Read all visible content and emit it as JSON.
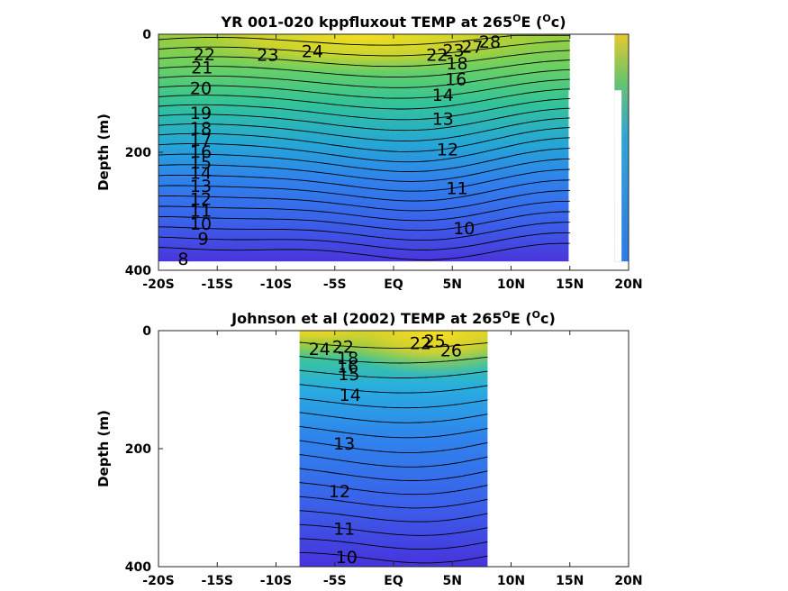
{
  "colors": {
    "cold": "#4a30e0",
    "mid": "#2f96e6",
    "teal": "#32c8a2",
    "green": "#8ccb3e",
    "warm": "#f7dc1c"
  },
  "chart_data": [
    {
      "type": "heatmap",
      "subtype": "contour",
      "title_main": "YR 001-020 kppfluxout TEMP at 265",
      "title_deg": "O",
      "title_E": "E (",
      "title_unit_c": "c",
      "title_close": ")",
      "ylabel": "Depth (m)",
      "xlim": [
        -20,
        20
      ],
      "ylim": [
        400,
        0
      ],
      "xticks": [
        -20,
        -15,
        -10,
        -5,
        0,
        5,
        10,
        15,
        20
      ],
      "xticklabels": [
        "-20S",
        "-15S",
        "-10S",
        "-5S",
        "EQ",
        "5N",
        "10N",
        "15N",
        "20N"
      ],
      "yticks": [
        0,
        200,
        400
      ],
      "yticklabels": [
        "0",
        "200",
        "400"
      ],
      "data_extent": {
        "x": [
          -20,
          15
        ],
        "depth": [
          0,
          385
        ]
      },
      "extra_column": {
        "x": [
          16,
          20
        ],
        "depth": [
          0,
          385
        ]
      },
      "contour_labels": [
        {
          "text": "22",
          "x": -16.1,
          "y": 35
        },
        {
          "text": "21",
          "x": -16.3,
          "y": 57
        },
        {
          "text": "20",
          "x": -16.4,
          "y": 92
        },
        {
          "text": "19",
          "x": -16.4,
          "y": 134
        },
        {
          "text": "18",
          "x": -16.4,
          "y": 160
        },
        {
          "text": "17",
          "x": -16.4,
          "y": 180
        },
        {
          "text": "16",
          "x": -16.4,
          "y": 200
        },
        {
          "text": "15",
          "x": -16.4,
          "y": 218
        },
        {
          "text": "14",
          "x": -16.4,
          "y": 236
        },
        {
          "text": "13",
          "x": -16.4,
          "y": 258
        },
        {
          "text": "12",
          "x": -16.4,
          "y": 280
        },
        {
          "text": "11",
          "x": -16.4,
          "y": 300
        },
        {
          "text": "10",
          "x": -16.4,
          "y": 322
        },
        {
          "text": "9",
          "x": -16.2,
          "y": 347
        },
        {
          "text": "8",
          "x": -17.9,
          "y": 382
        },
        {
          "text": "23",
          "x": -10.7,
          "y": 36
        },
        {
          "text": "24",
          "x": -6.9,
          "y": 30
        },
        {
          "text": "22",
          "x": 3.7,
          "y": 36
        },
        {
          "text": "23",
          "x": 5.1,
          "y": 28
        },
        {
          "text": "27",
          "x": 6.7,
          "y": 22
        },
        {
          "text": "28",
          "x": 8.2,
          "y": 14
        },
        {
          "text": "18",
          "x": 5.4,
          "y": 50
        },
        {
          "text": "16",
          "x": 5.3,
          "y": 77
        },
        {
          "text": "14",
          "x": 4.2,
          "y": 104
        },
        {
          "text": "13",
          "x": 4.2,
          "y": 144
        },
        {
          "text": "12",
          "x": 4.6,
          "y": 196
        },
        {
          "text": "11",
          "x": 5.4,
          "y": 262
        },
        {
          "text": "10",
          "x": 6.0,
          "y": 330
        }
      ]
    },
    {
      "type": "heatmap",
      "subtype": "contour",
      "title_main": "Johnson et al (2002) TEMP at 265",
      "title_deg": "O",
      "title_E": "E (",
      "title_unit_c": "c",
      "title_close": ")",
      "ylabel": "Depth (m)",
      "xlim": [
        -20,
        20
      ],
      "ylim": [
        400,
        0
      ],
      "xticks": [
        -20,
        -15,
        -10,
        -5,
        0,
        5,
        10,
        15,
        20
      ],
      "xticklabels": [
        "-20S",
        "-15S",
        "-10S",
        "-5S",
        "EQ",
        "5N",
        "10N",
        "15N",
        "20N"
      ],
      "yticks": [
        0,
        200,
        400
      ],
      "yticklabels": [
        "0",
        "200",
        "400"
      ],
      "data_extent": {
        "x": [
          -8,
          8
        ],
        "depth": [
          0,
          400
        ]
      },
      "contour_labels": [
        {
          "text": "24",
          "x": -6.3,
          "y": 32
        },
        {
          "text": "22",
          "x": -4.3,
          "y": 28
        },
        {
          "text": "18",
          "x": -3.9,
          "y": 47
        },
        {
          "text": "16",
          "x": -3.9,
          "y": 62
        },
        {
          "text": "15",
          "x": -3.8,
          "y": 75
        },
        {
          "text": "22",
          "x": 2.3,
          "y": 22
        },
        {
          "text": "25",
          "x": 3.5,
          "y": 18
        },
        {
          "text": "26",
          "x": 4.9,
          "y": 34
        },
        {
          "text": "14",
          "x": -3.7,
          "y": 110
        },
        {
          "text": "13",
          "x": -4.2,
          "y": 192
        },
        {
          "text": "12",
          "x": -4.6,
          "y": 273
        },
        {
          "text": "11",
          "x": -4.2,
          "y": 337
        },
        {
          "text": "10",
          "x": -4.0,
          "y": 385
        }
      ]
    }
  ]
}
